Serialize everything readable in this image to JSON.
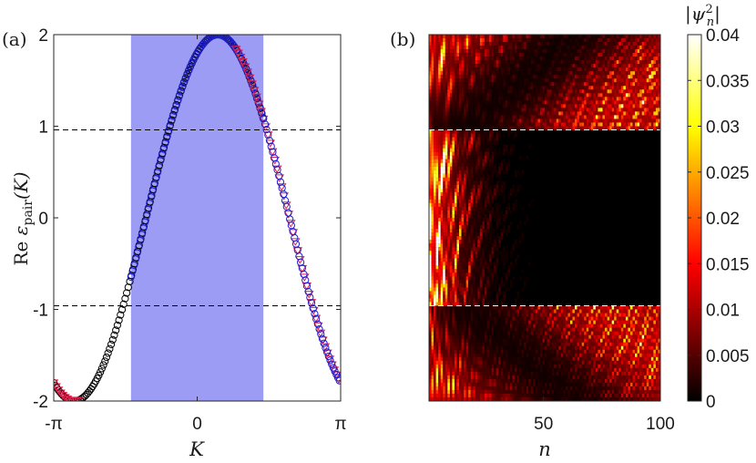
{
  "panels": {
    "a_label": "(a)",
    "b_label": "(b)"
  },
  "chart_data": [
    {
      "type": "line",
      "panel": "(a)",
      "xlabel": "K",
      "ylabel_prefix": "Re ",
      "ylabel_symbol": "ε",
      "ylabel_sub": "pair",
      "ylabel_suffix": "(K)",
      "xlim": [
        -3.14159,
        3.14159
      ],
      "ylim": [
        -2,
        2
      ],
      "xticks": [
        -3.14159,
        0,
        3.14159
      ],
      "xtick_labels": [
        "-π",
        "0",
        "π"
      ],
      "yticks": [
        -2,
        -1,
        0,
        1,
        2
      ],
      "ytick_labels": [
        "-2",
        "-1",
        "0",
        "1",
        "2"
      ],
      "curve": "2*cos(K - 0.45)",
      "shaded_band": {
        "x": [
          -1.45,
          1.45
        ],
        "color": "#9c9cf5"
      },
      "dashed_lines_y": [
        0.96,
        -0.96
      ],
      "series": [
        {
          "marker": "circle",
          "color": "#000000",
          "x_range": [
            -3.14159,
            1.45
          ]
        },
        {
          "marker": "circle",
          "color": "#1f1fd0",
          "x_range": [
            -1.45,
            1.45
          ]
        },
        {
          "marker": "triangle-down",
          "color": "#e0204a",
          "x_range": [
            0.85,
            3.14159
          ]
        },
        {
          "marker": "triangle-down",
          "color": "#e0204a",
          "x_range": [
            -3.14159,
            -2.55
          ]
        },
        {
          "marker": "circle",
          "color": "#1f1fd0",
          "x_range": [
            1.45,
            3.14159
          ]
        }
      ]
    },
    {
      "type": "heatmap",
      "panel": "(b)",
      "xlabel": "n",
      "xlim": [
        1,
        100
      ],
      "xticks": [
        50,
        100
      ],
      "xtick_labels": [
        "50",
        "100"
      ],
      "colorbar_title": "|ψ²ₙ|",
      "colorbar_title_parts": {
        "left": "|",
        "sym": "ψ",
        "sup": "2",
        "sub": "n",
        "right": "|"
      },
      "colorbar_range": [
        0,
        0.04
      ],
      "colorbar_ticks": [
        0,
        0.005,
        0.01,
        0.015,
        0.02,
        0.025,
        0.03,
        0.035,
        0.04
      ],
      "colorbar_tick_labels": [
        "0",
        "0.005",
        "0.01",
        "0.015",
        "0.02",
        "0.025",
        "0.03",
        "0.035",
        "0.04"
      ],
      "colormap": "hot",
      "grid_size": [
        100,
        100
      ],
      "dashed_lines_y_fraction": [
        0.26,
        0.74
      ]
    }
  ]
}
